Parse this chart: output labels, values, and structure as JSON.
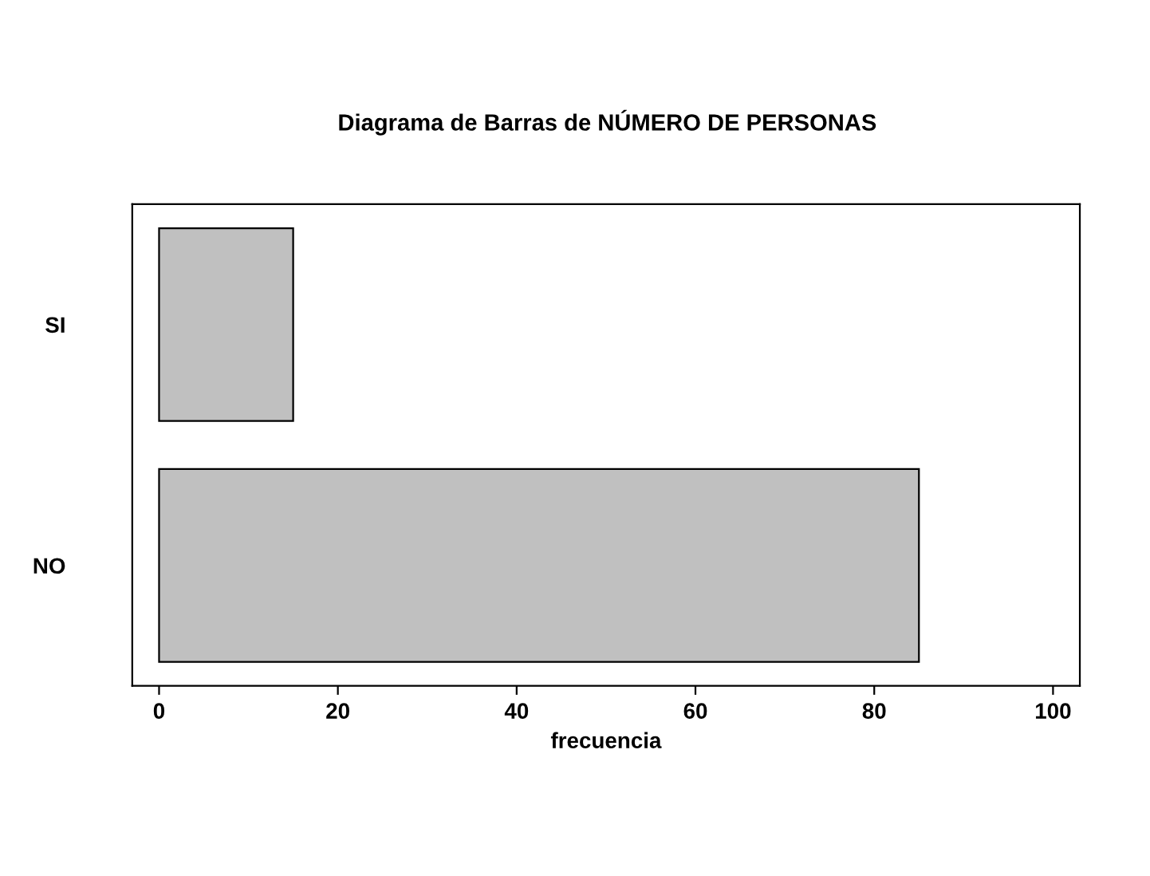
{
  "chart_data": {
    "type": "bar",
    "orientation": "horizontal",
    "title": "Diagrama de Barras de NÚMERO DE PERSONAS",
    "xlabel": "frecuencia",
    "categories": [
      "SI",
      "NO"
    ],
    "values": [
      15,
      85
    ],
    "color": "#c0c0c0",
    "xlim": [
      -3,
      103
    ],
    "xticks": [
      0,
      20,
      40,
      60,
      80,
      100
    ],
    "grid": false,
    "legend": false
  }
}
